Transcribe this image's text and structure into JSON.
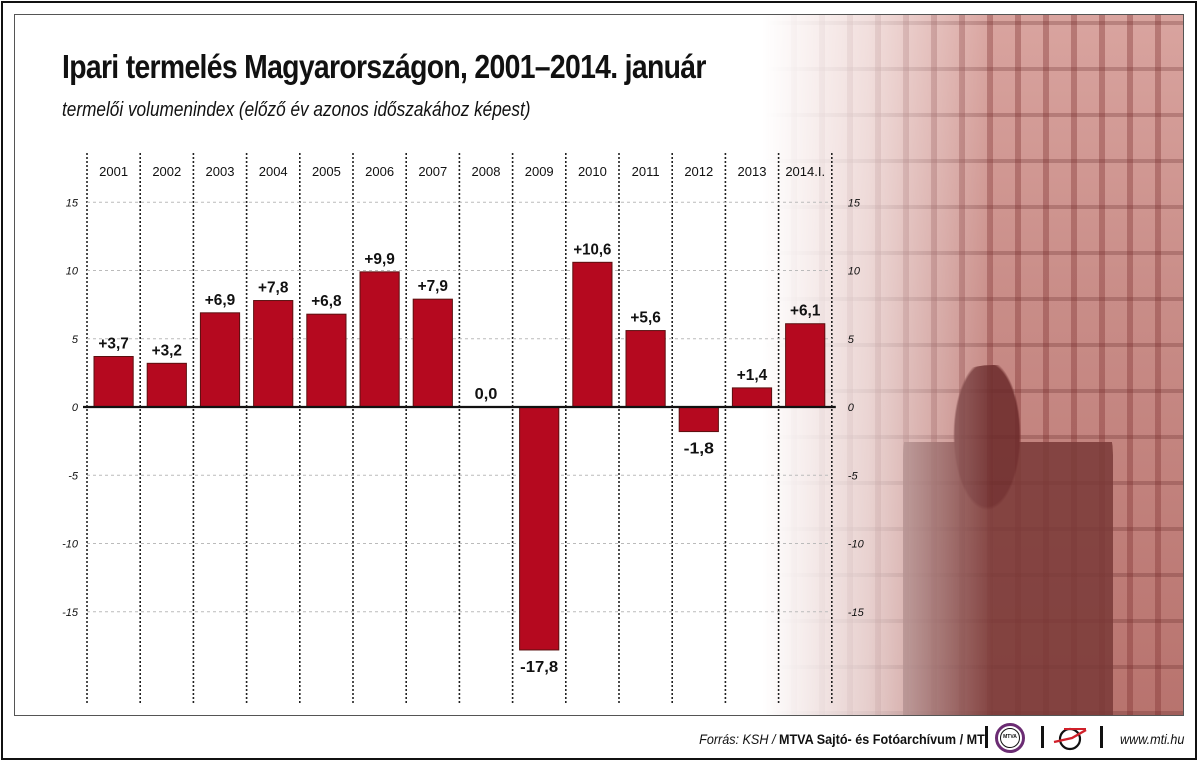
{
  "title": "Ipari termelés Magyarországon, 2001–2014. január",
  "subtitle": "termelői volumenindex (előző év azonos időszakához képest)",
  "colors": {
    "bar": "#b5091f",
    "bar_outline": "#5a1010",
    "text": "#111111",
    "mtva_ring": "#6b2c73",
    "mti_red": "#d0202a"
  },
  "chart_data": {
    "type": "bar",
    "title": "Ipari termelés Magyarországon, 2001–2014. január",
    "subtitle": "termelői volumenindex (előző év azonos időszakához képest)",
    "xlabel": "",
    "ylabel": "",
    "categories": [
      "2001",
      "2002",
      "2003",
      "2004",
      "2005",
      "2006",
      "2007",
      "2008",
      "2009",
      "2010",
      "2011",
      "2012",
      "2013",
      "2014.I."
    ],
    "values": [
      3.7,
      3.2,
      6.9,
      7.8,
      6.8,
      9.9,
      7.9,
      0.0,
      -17.8,
      10.6,
      5.6,
      -1.8,
      1.4,
      6.1
    ],
    "data_labels": [
      "+3,7",
      "+3,2",
      "+6,9",
      "+7,8",
      "+6,8",
      "+9,9",
      "+7,9",
      "0,0",
      "-17,8",
      "+10,6",
      "+5,6",
      "-1,8",
      "+1,4",
      "+6,1"
    ],
    "ylim": [
      -19,
      17
    ],
    "y_ticks": [
      15,
      10,
      5,
      0,
      -5,
      -10,
      -15
    ],
    "y_tick_labels": [
      "15",
      "10",
      "5",
      "0",
      "-5",
      "-10",
      "-15"
    ],
    "y_axis_sides": "left and right",
    "category_labels_position": "top",
    "grid": true,
    "legend": "none"
  },
  "footer": {
    "source_prefix": "Forrás: KSH / ",
    "source_bold": "MTVA Sajtó- és Fotóarchívum / MTI",
    "mtva_logo_text": "MTVA",
    "url": "www.mti.hu"
  },
  "icons": {
    "mtva_logo": "mtva-logo-icon",
    "mti_logo": "mti-logo-icon"
  }
}
